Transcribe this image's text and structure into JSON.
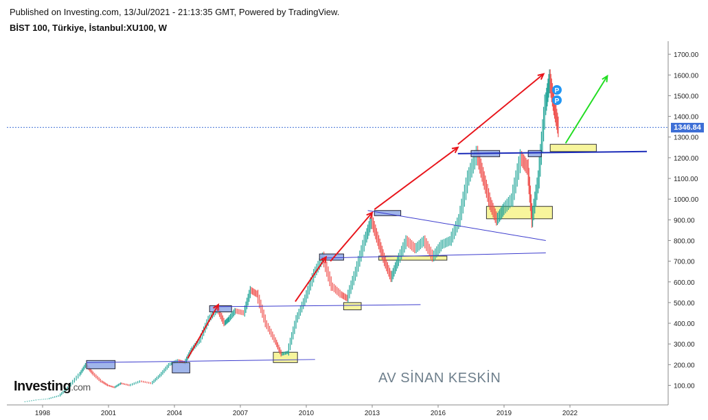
{
  "header": {
    "published": "Published on Investing.com, 13/Jul/2021 - 21:13:35 GMT, Powered by TradingView.",
    "symbol": "BİST 100, Türkiye, İstanbul:XU100, W"
  },
  "current_price_label": "1346.84",
  "logo_text": "Investing",
  "logo_suffix": ".com",
  "watermark": "AV SİNAN KESKİN",
  "markers": [
    "P",
    "P"
  ],
  "colors": {
    "up": "#26a69a",
    "down": "#ef5350",
    "arrow_red": "#e8151b",
    "arrow_green": "#22dd22",
    "trendline": "#3a3acd",
    "box_blue": "#8fa8e6",
    "box_yellow": "#f7f59c",
    "price_tag": "#3e6fd6"
  },
  "chart_data": {
    "type": "line",
    "title": "",
    "xlabel": "",
    "ylabel": "",
    "x_ticks": [
      "1998",
      "2001",
      "2004",
      "2007",
      "2010",
      "2013",
      "2016",
      "2019",
      "2022"
    ],
    "y_ticks": [
      "100.00",
      "200.00",
      "300.00",
      "400.00",
      "500.00",
      "600.00",
      "700.00",
      "800.00",
      "900.00",
      "1000.00",
      "1100.00",
      "1200.00",
      "1300.00",
      "1400.00",
      "1500.00",
      "1600.00",
      "1700.00"
    ],
    "xlim": [
      1997.2,
      2025.7
    ],
    "ylim": [
      10,
      1780
    ],
    "last_price": 1346.84,
    "series": [
      {
        "x": [
          1997.2,
          1997.8,
          1998.3,
          1998.8,
          1999.2,
          1999.7,
          2000.0,
          2000.3,
          2000.7,
          2001.0,
          2001.3,
          2001.6,
          2002.0,
          2002.5,
          2003.0,
          2003.4,
          2003.8,
          2004.2,
          2004.5,
          2004.8,
          2005.2,
          2005.6,
          2006.0,
          2006.3,
          2006.5,
          2006.8,
          2007.2,
          2007.5,
          2007.8,
          2008.2,
          2008.6,
          2008.9,
          2009.2,
          2009.6,
          2010.0,
          2010.4,
          2010.8,
          2011.2,
          2011.6,
          2011.9,
          2012.3,
          2012.7,
          2013.0,
          2013.3,
          2013.6,
          2013.9,
          2014.2,
          2014.6,
          2015.0,
          2015.4,
          2015.8,
          2016.2,
          2016.6,
          2017.0,
          2017.4,
          2017.8,
          2018.1,
          2018.4,
          2018.7,
          2019.0,
          2019.4,
          2019.8,
          2020.1,
          2020.3,
          2020.6,
          2020.9,
          2021.1,
          2021.3,
          2021.5
        ],
        "values": [
          20,
          30,
          35,
          50,
          90,
          150,
          200,
          160,
          120,
          100,
          90,
          110,
          100,
          120,
          110,
          150,
          200,
          220,
          210,
          270,
          320,
          420,
          470,
          400,
          420,
          460,
          450,
          560,
          540,
          400,
          320,
          250,
          260,
          420,
          520,
          640,
          720,
          580,
          540,
          520,
          650,
          800,
          900,
          800,
          700,
          620,
          700,
          800,
          760,
          800,
          720,
          780,
          800,
          900,
          1100,
          1220,
          1100,
          980,
          900,
          950,
          1000,
          1200,
          1150,
          900,
          1100,
          1450,
          1580,
          1450,
          1340
        ]
      }
    ],
    "annotations": {
      "trendlines": [
        {
          "x": [
            2000.0,
            2010.4
          ],
          "y": [
            210,
            225
          ]
        },
        {
          "x": [
            2005.8,
            2015.2
          ],
          "y": [
            480,
            490
          ]
        },
        {
          "x": [
            2010.7,
            2020.9
          ],
          "y": [
            715,
            740
          ]
        },
        {
          "x": [
            2012.8,
            2020.9
          ],
          "y": [
            945,
            800
          ]
        },
        {
          "x": [
            2016.9,
            2025.5
          ],
          "y": [
            1220,
            1230
          ]
        }
      ],
      "zones_blue": [
        {
          "x": [
            2000.0,
            2001.3
          ],
          "y": [
            180,
            220
          ]
        },
        {
          "x": [
            2003.9,
            2004.7
          ],
          "y": [
            160,
            210
          ]
        },
        {
          "x": [
            2005.6,
            2006.6
          ],
          "y": [
            455,
            485
          ]
        },
        {
          "x": [
            2010.6,
            2011.7
          ],
          "y": [
            705,
            735
          ]
        },
        {
          "x": [
            2013.1,
            2014.3
          ],
          "y": [
            920,
            945
          ]
        },
        {
          "x": [
            2017.5,
            2018.8
          ],
          "y": [
            1205,
            1235
          ]
        },
        {
          "x": [
            2020.1,
            2020.7
          ],
          "y": [
            1205,
            1235
          ]
        }
      ],
      "zones_yellow": [
        {
          "x": [
            2008.5,
            2009.6
          ],
          "y": [
            210,
            260
          ]
        },
        {
          "x": [
            2011.7,
            2012.5
          ],
          "y": [
            465,
            500
          ]
        },
        {
          "x": [
            2013.3,
            2016.4
          ],
          "y": [
            705,
            725
          ]
        },
        {
          "x": [
            2018.2,
            2021.2
          ],
          "y": [
            905,
            965
          ]
        },
        {
          "x": [
            2021.1,
            2023.2
          ],
          "y": [
            1230,
            1265
          ]
        }
      ],
      "arrows_red": [
        {
          "x": [
            2004.6,
            2006.0
          ],
          "y": [
            230,
            490
          ]
        },
        {
          "x": [
            2009.5,
            2010.9
          ],
          "y": [
            505,
            720
          ]
        },
        {
          "x": [
            2011.1,
            2013.0
          ],
          "y": [
            700,
            935
          ]
        },
        {
          "x": [
            2013.1,
            2016.9
          ],
          "y": [
            950,
            1250
          ]
        },
        {
          "x": [
            2016.9,
            2020.8
          ],
          "y": [
            1265,
            1605
          ]
        }
      ],
      "arrows_green": [
        {
          "x": [
            2021.8,
            2023.7
          ],
          "y": [
            1270,
            1595
          ]
        }
      ]
    }
  }
}
